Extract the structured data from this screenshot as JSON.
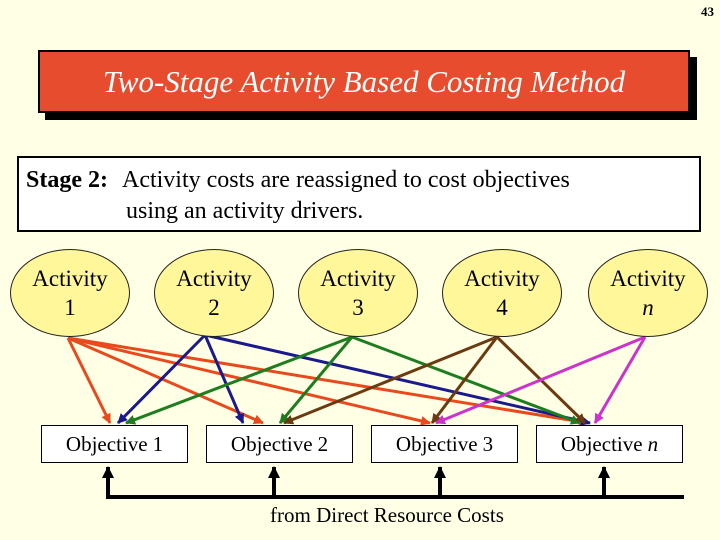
{
  "slide_number": "43",
  "title": "Two-Stage Activity Based Costing Method",
  "stage": {
    "label": "Stage 2:",
    "line1": "Activity costs are reassigned to cost objectives",
    "line2": "using an activity drivers."
  },
  "activities": [
    {
      "label": "Activity",
      "num": "1"
    },
    {
      "label": "Activity",
      "num": "2"
    },
    {
      "label": "Activity",
      "num": "3"
    },
    {
      "label": "Activity",
      "num": "4"
    },
    {
      "label": "Activity",
      "num": "n"
    }
  ],
  "objectives": [
    {
      "label": "Objective",
      "num": "1"
    },
    {
      "label": "Objective",
      "num": "2"
    },
    {
      "label": "Objective",
      "num": "3"
    },
    {
      "label": "Objective",
      "num": "n"
    }
  ],
  "footer": "from Direct Resource Costs",
  "colors": {
    "title_bg": "#E74C2E",
    "activity_fill": "#FFF79A",
    "activity1_arrows": "#E84A1E",
    "activity2_arrows": "#1A1A8C",
    "activity3_arrows": "#1E7D1E",
    "activity4_arrows": "#6B3A10",
    "activityn_arrows": "#CC33CC"
  }
}
